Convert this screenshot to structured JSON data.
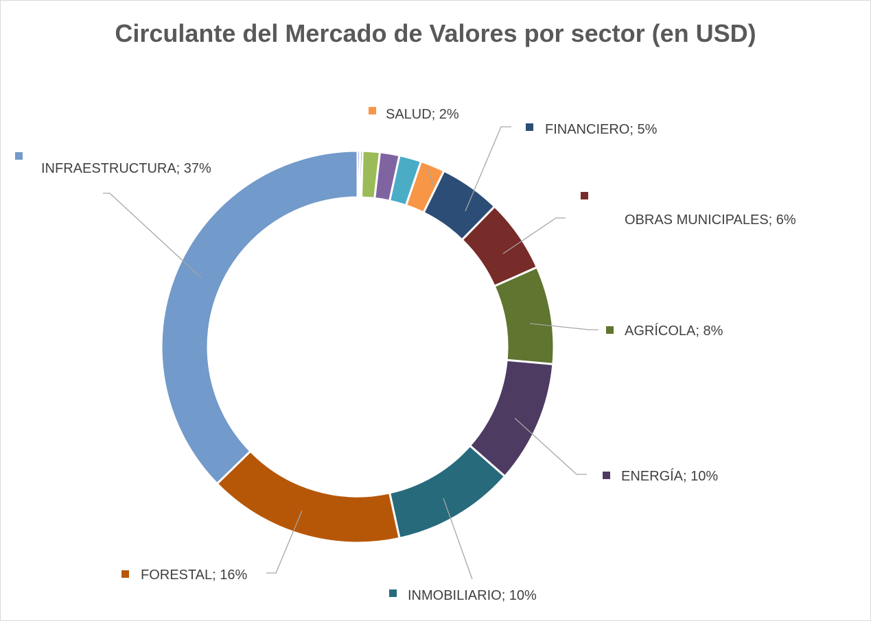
{
  "chart_data": {
    "type": "pie",
    "donut": true,
    "title": "Circulante del Mercado de Valores por sector (en USD)",
    "slices": [
      {
        "name": "",
        "value": 0.2,
        "label": "",
        "color": "#4472c4"
      },
      {
        "name": "",
        "value": 0.2,
        "label": "",
        "color": "#c0504d"
      },
      {
        "name": "",
        "value": 1.4,
        "label": "",
        "color": "#9bbb59"
      },
      {
        "name": "",
        "value": 1.6,
        "label": "",
        "color": "#8064a2"
      },
      {
        "name": "",
        "value": 1.8,
        "label": "",
        "color": "#4bacc6"
      },
      {
        "name": "SALUD",
        "value": 2,
        "label": "SALUD; 2%",
        "color": "#f79646"
      },
      {
        "name": "FINANCIERO",
        "value": 5,
        "label": "FINANCIERO; 5%",
        "color": "#2c4d75"
      },
      {
        "name": "OBRAS MUNICIPALES",
        "value": 6,
        "label": "OBRAS MUNICIPALES; 6%",
        "color": "#772c2a"
      },
      {
        "name": "AGRÍCOLA",
        "value": 8,
        "label": "AGRÍCOLA; 8%",
        "color": "#5f7530"
      },
      {
        "name": "ENERGÍA",
        "value": 10,
        "label": "ENERGÍA; 10%",
        "color": "#4d3b62"
      },
      {
        "name": "INMOBILIARIO",
        "value": 10,
        "label": "INMOBILIARIO; 10%",
        "color": "#276a7c"
      },
      {
        "name": "FORESTAL",
        "value": 16,
        "label": "FORESTAL; 16%",
        "color": "#b65708"
      },
      {
        "name": "INFRAESTRUCTURA",
        "value": 37,
        "label": "INFRAESTRUCTURA; 37%",
        "color": "#729aca"
      }
    ]
  }
}
